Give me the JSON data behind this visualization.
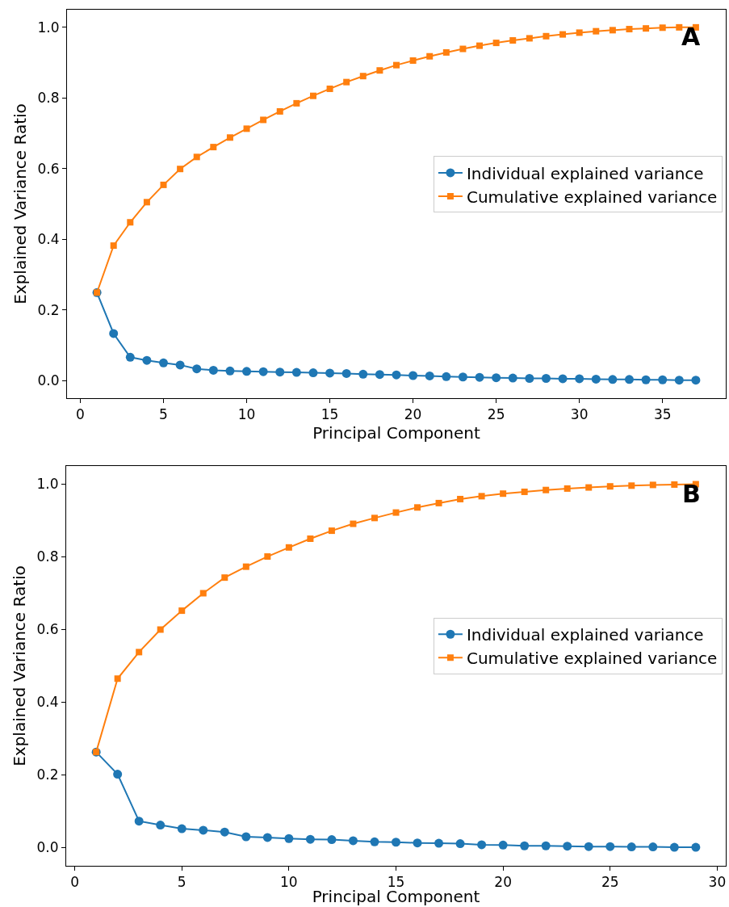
{
  "chart_data": [
    {
      "type": "line",
      "xlabel": "Principal Component",
      "ylabel": "Explained Variance Ratio",
      "annotations": [
        "A"
      ],
      "legend": "right",
      "grid": false,
      "line_style": "solid",
      "xlim": [
        -0.8,
        38.8
      ],
      "xticks": [
        0,
        5,
        10,
        15,
        20,
        25,
        30,
        35
      ],
      "ylim": [
        -0.05,
        1.05
      ],
      "yticks": [
        {
          "value": 0,
          "label": "0.0"
        },
        {
          "value": 0.2,
          "label": "0.2"
        },
        {
          "value": 0.4,
          "label": "0.4"
        },
        {
          "value": 0.6,
          "label": "0.6"
        },
        {
          "value": 0.8,
          "label": "0.8"
        },
        {
          "value": 1,
          "label": "1.0"
        }
      ],
      "x": [
        1,
        2,
        3,
        4,
        5,
        6,
        7,
        8,
        9,
        10,
        11,
        12,
        13,
        14,
        15,
        16,
        17,
        18,
        19,
        20,
        21,
        22,
        23,
        24,
        25,
        26,
        27,
        28,
        29,
        30,
        31,
        32,
        33,
        34,
        35,
        36,
        37
      ],
      "series": [
        {
          "name": "Individual explained variance",
          "color": "#1f77b4",
          "marker": "circle",
          "values": [
            0.249,
            0.133,
            0.066,
            0.057,
            0.05,
            0.044,
            0.033,
            0.029,
            0.027,
            0.026,
            0.025,
            0.024,
            0.023,
            0.022,
            0.021,
            0.02,
            0.018,
            0.017,
            0.016,
            0.014,
            0.013,
            0.011,
            0.01,
            0.009,
            0.008,
            0.007,
            0.006,
            0.006,
            0.005,
            0.005,
            0.004,
            0.003,
            0.003,
            0.002,
            0.002,
            0.001,
            0.001
          ]
        },
        {
          "name": "Cumulative explained variance",
          "color": "#ff7f0e",
          "marker": "square",
          "values": [
            0.249,
            0.382,
            0.448,
            0.505,
            0.554,
            0.599,
            0.633,
            0.661,
            0.688,
            0.713,
            0.738,
            0.762,
            0.785,
            0.806,
            0.826,
            0.845,
            0.862,
            0.878,
            0.893,
            0.906,
            0.918,
            0.929,
            0.939,
            0.948,
            0.956,
            0.963,
            0.969,
            0.975,
            0.98,
            0.985,
            0.989,
            0.992,
            0.995,
            0.997,
            0.999,
            1.0,
            1.0
          ]
        }
      ]
    },
    {
      "type": "line",
      "xlabel": "Principal Component",
      "ylabel": "Explained Variance Ratio",
      "annotations": [
        "B"
      ],
      "legend": "right",
      "grid": false,
      "line_style": "solid",
      "xlim": [
        -0.4,
        30.4
      ],
      "xticks": [
        0,
        5,
        10,
        15,
        20,
        25,
        30
      ],
      "ylim": [
        -0.05,
        1.05
      ],
      "yticks": [
        {
          "value": 0,
          "label": "0.0"
        },
        {
          "value": 0.2,
          "label": "0.2"
        },
        {
          "value": 0.4,
          "label": "0.4"
        },
        {
          "value": 0.6,
          "label": "0.6"
        },
        {
          "value": 0.8,
          "label": "0.8"
        },
        {
          "value": 1,
          "label": "1.0"
        }
      ],
      "x": [
        1,
        2,
        3,
        4,
        5,
        6,
        7,
        8,
        9,
        10,
        11,
        12,
        13,
        14,
        15,
        16,
        17,
        18,
        19,
        20,
        21,
        22,
        23,
        24,
        25,
        26,
        27,
        28,
        29
      ],
      "series": [
        {
          "name": "Individual explained variance",
          "color": "#1f77b4",
          "marker": "circle",
          "values": [
            0.263,
            0.202,
            0.073,
            0.062,
            0.052,
            0.048,
            0.043,
            0.03,
            0.028,
            0.025,
            0.023,
            0.022,
            0.019,
            0.016,
            0.015,
            0.013,
            0.012,
            0.011,
            0.008,
            0.007,
            0.005,
            0.005,
            0.004,
            0.003,
            0.003,
            0.002,
            0.002,
            0.001,
            0.001
          ]
        },
        {
          "name": "Cumulative explained variance",
          "color": "#ff7f0e",
          "marker": "square",
          "values": [
            0.263,
            0.465,
            0.538,
            0.6,
            0.652,
            0.7,
            0.743,
            0.773,
            0.801,
            0.826,
            0.85,
            0.872,
            0.891,
            0.907,
            0.922,
            0.936,
            0.948,
            0.959,
            0.967,
            0.974,
            0.979,
            0.984,
            0.988,
            0.991,
            0.994,
            0.996,
            0.998,
            0.999,
            1.0
          ]
        }
      ]
    }
  ]
}
